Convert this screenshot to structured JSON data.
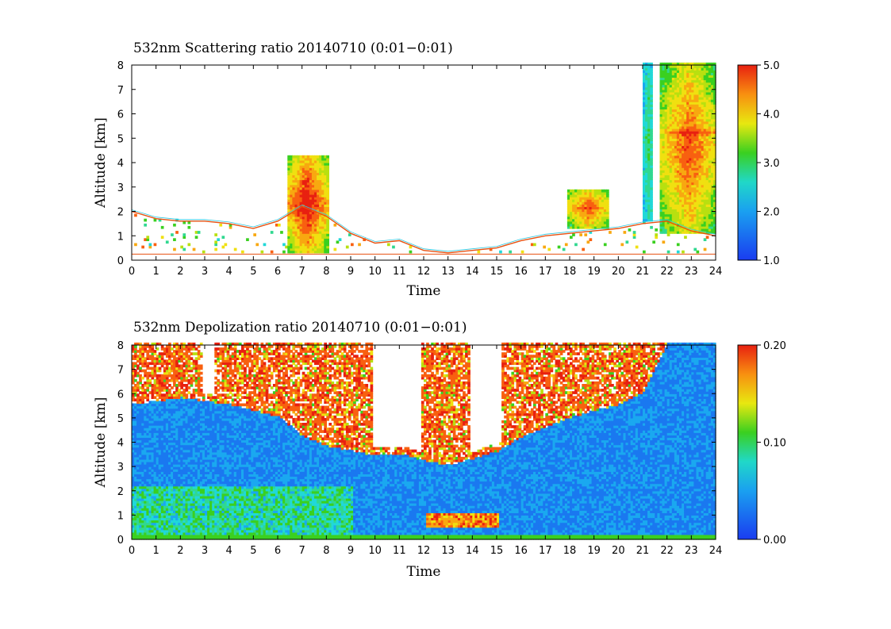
{
  "chart_data": [
    {
      "type": "heatmap",
      "title": "532nm Scattering ratio  20140710 (0:01−0:01)",
      "xlabel": "Time",
      "ylabel": "Altitude [km]",
      "xlim": [
        0,
        24
      ],
      "ylim": [
        0,
        8
      ],
      "x_ticks": [
        "0",
        "1",
        "2",
        "3",
        "4",
        "5",
        "6",
        "7",
        "8",
        "9",
        "10",
        "11",
        "12",
        "13",
        "14",
        "15",
        "16",
        "17",
        "18",
        "19",
        "20",
        "21",
        "22",
        "23",
        "24"
      ],
      "y_ticks": [
        "0",
        "1",
        "2",
        "3",
        "4",
        "5",
        "6",
        "7",
        "8"
      ],
      "colorbar": {
        "range": [
          1.0,
          5.0
        ],
        "ticks": [
          "1.0",
          "2.0",
          "3.0",
          "4.0",
          "5.0"
        ],
        "colormap": "rainbow (blue-cyan-green-yellow-red)"
      },
      "features": [
        {
          "name": "boundary-layer top",
          "points": [
            [
              0,
              2.0
            ],
            [
              1,
              1.7
            ],
            [
              2,
              1.6
            ],
            [
              3,
              1.6
            ],
            [
              4,
              1.5
            ],
            [
              5,
              1.3
            ],
            [
              6,
              1.6
            ],
            [
              7,
              2.2
            ],
            [
              8,
              1.8
            ],
            [
              9,
              1.1
            ],
            [
              10,
              0.7
            ],
            [
              11,
              0.8
            ],
            [
              12,
              0.4
            ],
            [
              13,
              0.3
            ],
            [
              14,
              0.4
            ],
            [
              15,
              0.5
            ],
            [
              16,
              0.8
            ],
            [
              17,
              1.0
            ],
            [
              18,
              1.1
            ],
            [
              19,
              1.2
            ],
            [
              20,
              1.3
            ],
            [
              21,
              1.5
            ],
            [
              22,
              1.6
            ],
            [
              23,
              1.2
            ],
            [
              24,
              1.0
            ]
          ]
        },
        {
          "name": "convective cloud",
          "time": [
            6.3,
            8.0
          ],
          "altitude": [
            0.3,
            4.3
          ],
          "peak_ratio": 5.0
        },
        {
          "name": "cloud tower",
          "time": [
            21.0,
            21.4
          ],
          "altitude": [
            1.6,
            8.0
          ],
          "peak_ratio": 2.5
        },
        {
          "name": "cloud system",
          "time": [
            21.7,
            24.0
          ],
          "altitude": [
            1.0,
            8.0
          ],
          "peak_ratio": 4.5
        },
        {
          "name": "cloud layer",
          "time": [
            21.8,
            24.0
          ],
          "altitude": [
            4.9,
            5.5
          ],
          "peak_ratio": 5.0
        },
        {
          "name": "cloud",
          "time": [
            17.8,
            19.6
          ],
          "altitude": [
            1.3,
            2.9
          ],
          "peak_ratio": 4.5
        }
      ]
    },
    {
      "type": "heatmap",
      "title": "532nm Depolization ratio  20140710 (0:01−0:01)",
      "xlabel": "Time",
      "ylabel": "Altitude [km]",
      "xlim": [
        0,
        24
      ],
      "ylim": [
        0,
        8
      ],
      "x_ticks": [
        "0",
        "1",
        "2",
        "3",
        "4",
        "5",
        "6",
        "7",
        "8",
        "9",
        "10",
        "11",
        "12",
        "13",
        "14",
        "15",
        "16",
        "17",
        "18",
        "19",
        "20",
        "21",
        "22",
        "23",
        "24"
      ],
      "y_ticks": [
        "0",
        "1",
        "2",
        "3",
        "4",
        "5",
        "6",
        "7",
        "8"
      ],
      "colorbar": {
        "range": [
          0.0,
          0.2
        ],
        "ticks": [
          "0.00",
          "0.10",
          "0.20"
        ],
        "colormap": "rainbow (blue-cyan-green-yellow-red)"
      },
      "features": [
        {
          "name": "noise floor",
          "points": [
            [
              0,
              5.5
            ],
            [
              2,
              5.8
            ],
            [
              4,
              5.5
            ],
            [
              6,
              5.0
            ],
            [
              7,
              4.2
            ],
            [
              8,
              3.8
            ],
            [
              9,
              3.6
            ],
            [
              10,
              3.4
            ],
            [
              11,
              3.5
            ],
            [
              12,
              3.2
            ],
            [
              13,
              3.0
            ],
            [
              14,
              3.3
            ],
            [
              15,
              3.6
            ],
            [
              16,
              4.2
            ],
            [
              18,
              5.0
            ],
            [
              20,
              5.5
            ],
            [
              21,
              6.0
            ],
            [
              22,
              8.0
            ],
            [
              24,
              8.0
            ]
          ]
        },
        {
          "name": "blank gaps",
          "time_ranges": [
            [
              2.9,
              3.4
            ],
            [
              9.8,
              11.8
            ],
            [
              13.8,
              15.1
            ]
          ]
        },
        {
          "name": "aerosol layer",
          "time": [
            12.0,
            15.0
          ],
          "altitude": [
            0.5,
            1.0
          ],
          "peak_ratio": 0.2
        }
      ]
    }
  ]
}
